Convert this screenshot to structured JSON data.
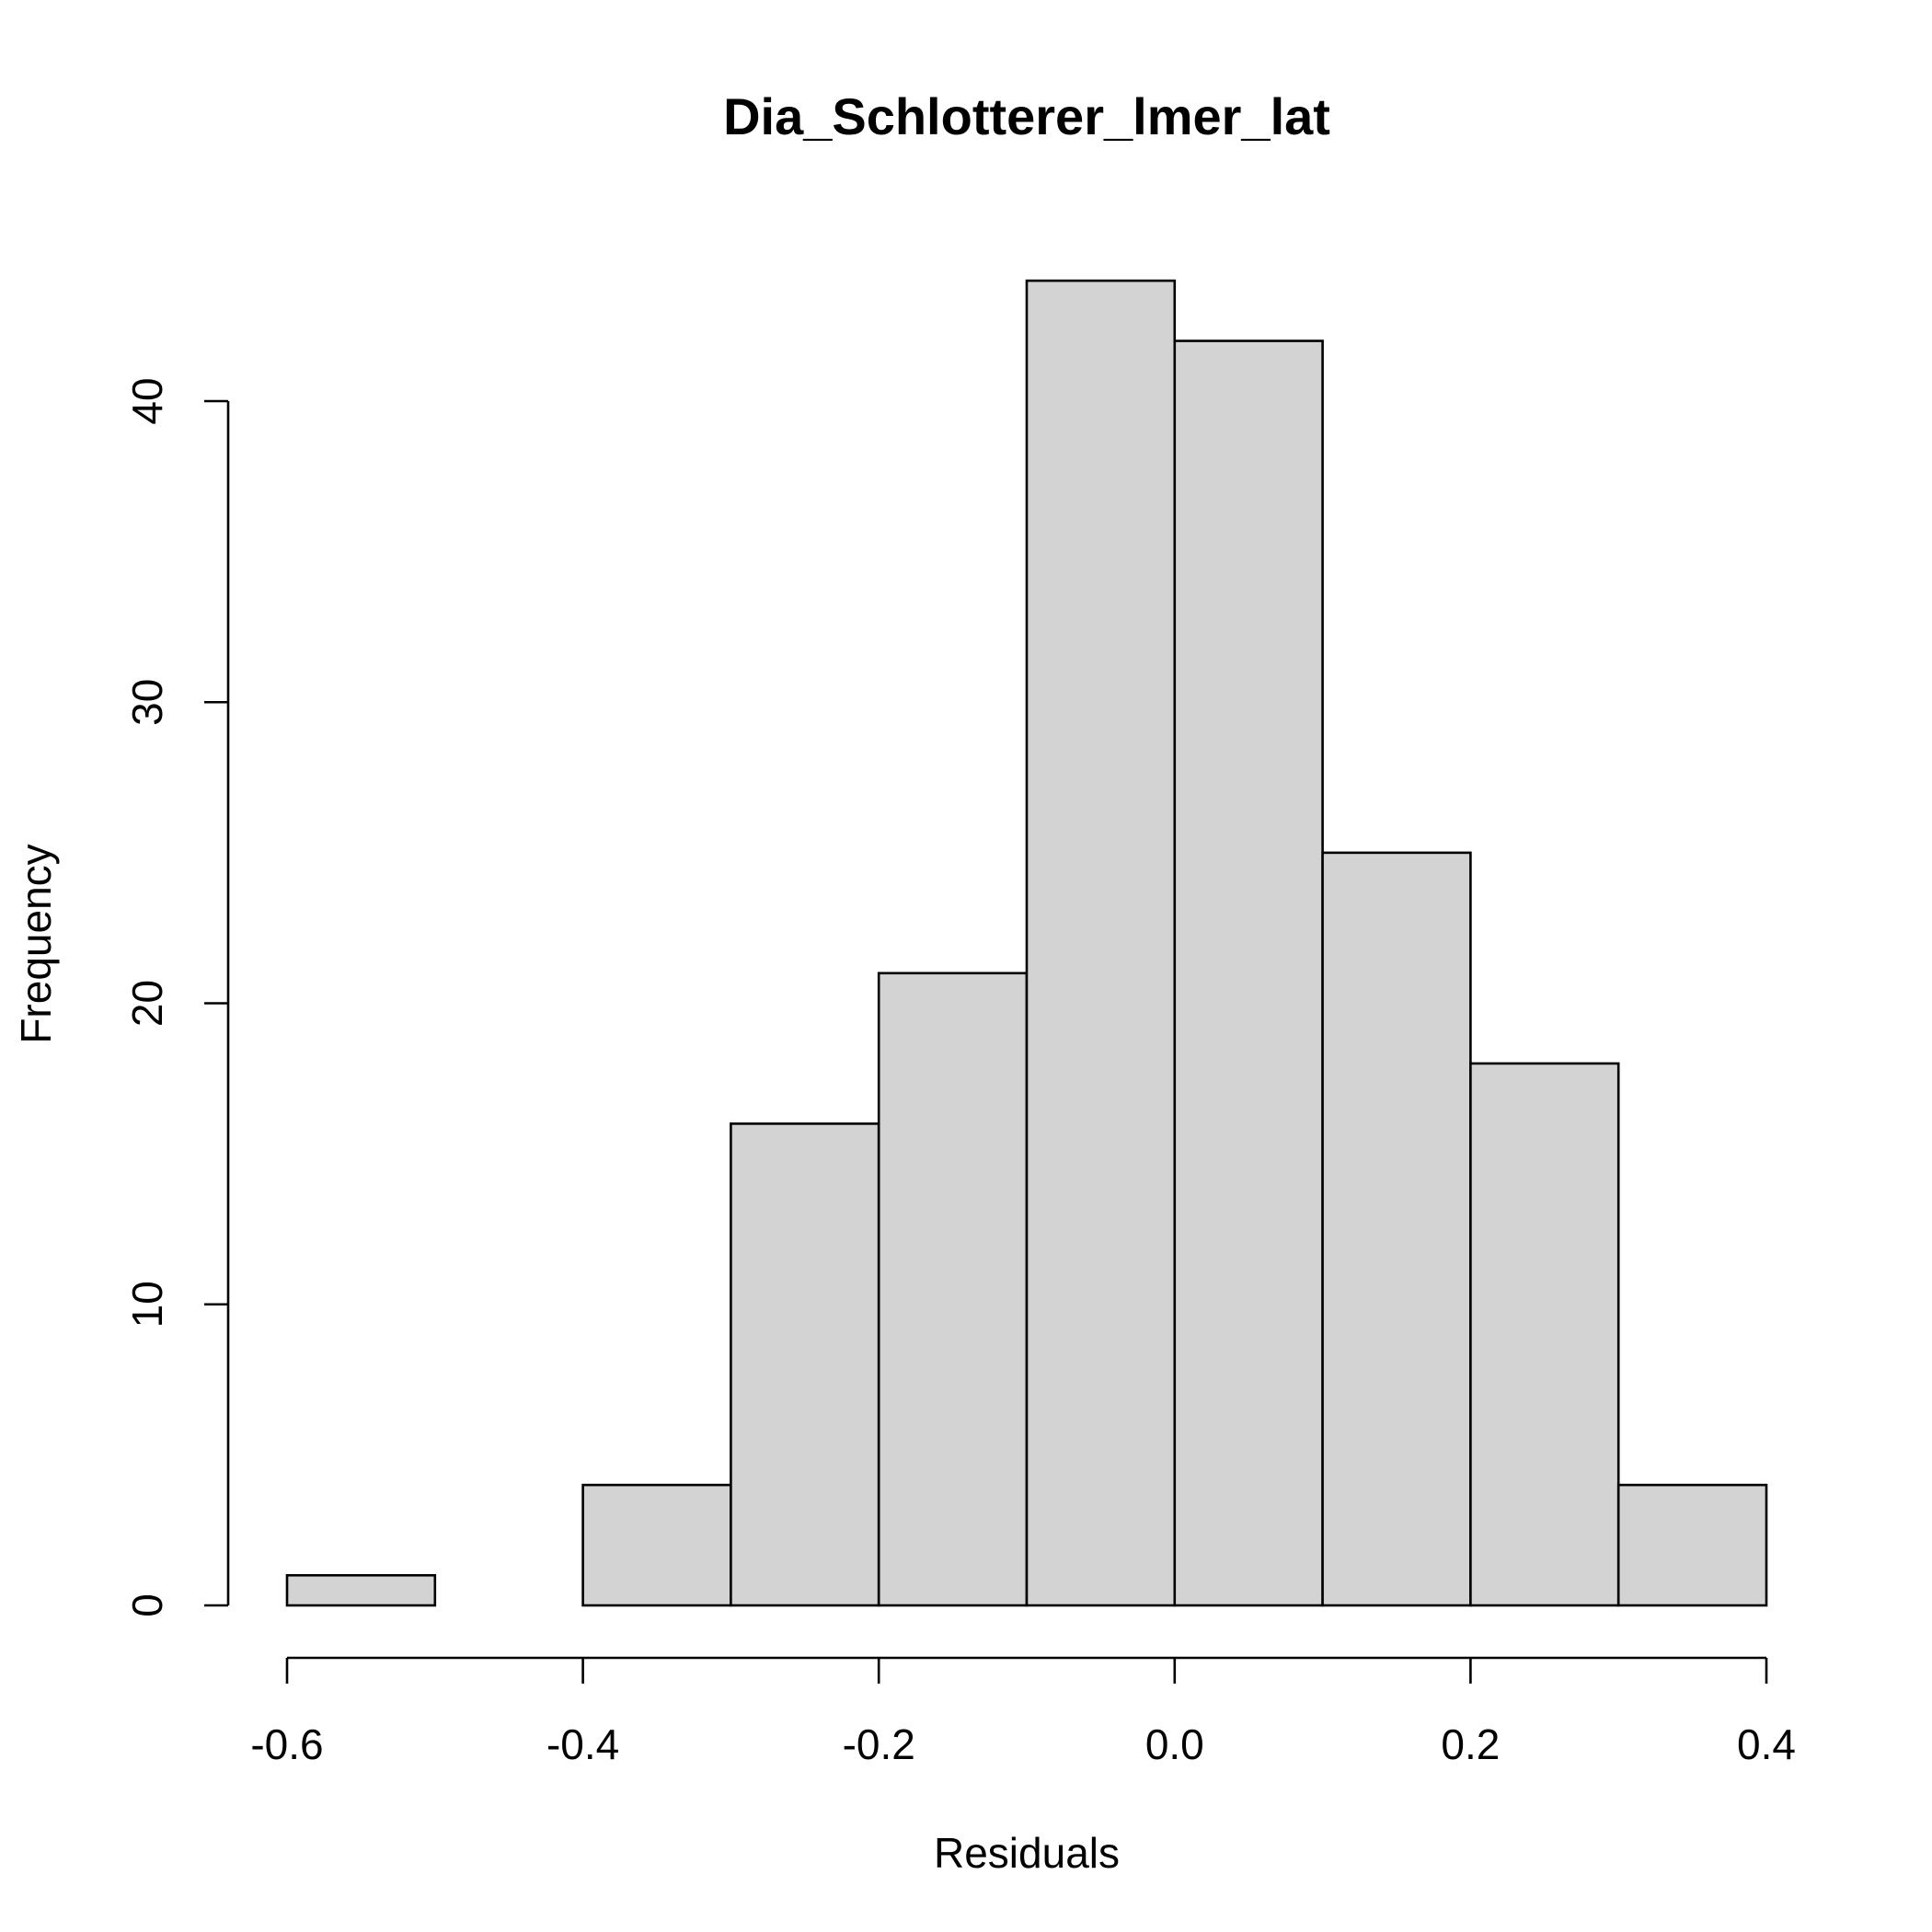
{
  "chart_data": {
    "type": "bar",
    "title": "Dia_Schlotterer_lmer_lat",
    "xlabel": "Residuals",
    "ylabel": "Frequency",
    "bins": [
      {
        "from": -0.6,
        "to": -0.5,
        "count": 1
      },
      {
        "from": -0.5,
        "to": -0.4,
        "count": 0
      },
      {
        "from": -0.4,
        "to": -0.3,
        "count": 4
      },
      {
        "from": -0.3,
        "to": -0.2,
        "count": 16
      },
      {
        "from": -0.2,
        "to": -0.1,
        "count": 21
      },
      {
        "from": -0.1,
        "to": 0.0,
        "count": 44
      },
      {
        "from": 0.0,
        "to": 0.1,
        "count": 42
      },
      {
        "from": 0.1,
        "to": 0.2,
        "count": 25
      },
      {
        "from": 0.2,
        "to": 0.3,
        "count": 18
      },
      {
        "from": 0.3,
        "to": 0.4,
        "count": 4
      }
    ],
    "xlim": [
      -0.6,
      0.4
    ],
    "ylim": [
      0,
      44
    ],
    "xticks": [
      -0.6,
      -0.4,
      -0.2,
      0.0,
      0.2,
      0.4
    ],
    "xtick_labels": [
      "-0.6",
      "-0.4",
      "-0.2",
      "0.0",
      "0.2",
      "0.4"
    ],
    "yticks": [
      0,
      10,
      20,
      30,
      40
    ],
    "ytick_labels": [
      "0",
      "10",
      "20",
      "30",
      "40"
    ],
    "grid": false,
    "legend": "none",
    "colors": {
      "bar_fill": "#d3d3d3",
      "bar_edge": "#000000",
      "background": "#ffffff"
    }
  }
}
